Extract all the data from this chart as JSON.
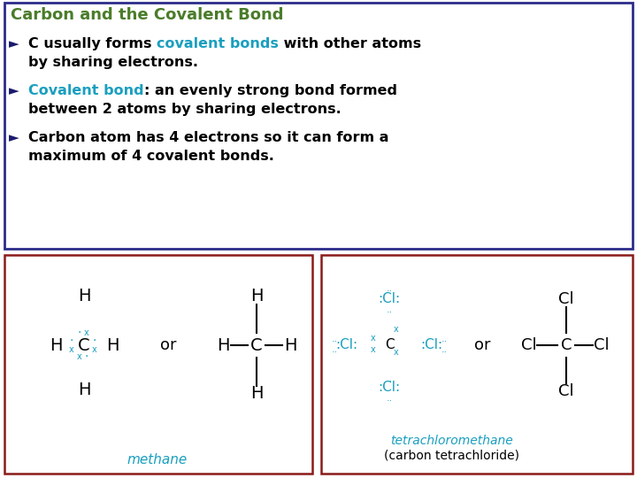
{
  "background_color": "#ffffff",
  "top_box_border_color": "#2c2c8a",
  "bottom_left_box_border_color": "#8b1a1a",
  "bottom_right_box_border_color": "#8b1a1a",
  "title": "Carbon and the Covalent Bond",
  "title_color": "#4a7c2a",
  "bullet_color": "#1a1a6e",
  "teal": "#1a9fbf",
  "methane_label": "methane",
  "tetrachloromethane_label": "tetrachloromethane",
  "carbon_tetrachloride_label": "(carbon tetrachloride)"
}
